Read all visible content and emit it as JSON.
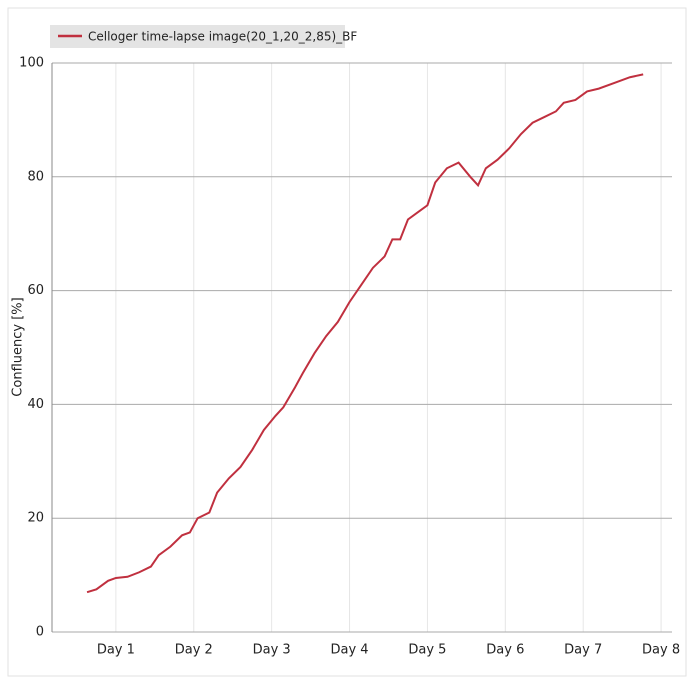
{
  "chart_data": {
    "type": "line",
    "ylabel": "Confluency [%]",
    "x": [
      0.63,
      0.75,
      0.9,
      1.0,
      1.15,
      1.3,
      1.45,
      1.55,
      1.7,
      1.85,
      1.95,
      2.05,
      2.2,
      2.3,
      2.45,
      2.6,
      2.75,
      2.9,
      3.05,
      3.15,
      3.3,
      3.4,
      3.55,
      3.7,
      3.85,
      4.0,
      4.15,
      4.3,
      4.45,
      4.55,
      4.65,
      4.75,
      4.9,
      5.0,
      5.1,
      5.25,
      5.4,
      5.55,
      5.65,
      5.75,
      5.9,
      6.05,
      6.2,
      6.35,
      6.5,
      6.65,
      6.75,
      6.9,
      7.05,
      7.2,
      7.4,
      7.6,
      7.77
    ],
    "series": [
      {
        "name": "Celloger time-lapse image(20_1,20_2,85)_BF",
        "color": "#c0303f",
        "values": [
          7,
          7.5,
          9,
          9.5,
          9.7,
          10.5,
          11.5,
          13.5,
          15,
          17,
          17.5,
          20,
          21,
          24.5,
          27,
          29,
          32,
          35.5,
          38,
          39.5,
          43,
          45.5,
          49,
          52,
          54.5,
          58,
          61,
          64,
          66,
          69,
          69,
          72.5,
          74,
          75,
          79,
          81.5,
          82.5,
          80,
          78.5,
          81.5,
          83,
          85,
          87.5,
          89.5,
          90.5,
          91.5,
          93,
          93.5,
          95,
          95.5,
          96.5,
          97.5,
          98
        ]
      }
    ],
    "xlim": [
      0.18,
      8.14
    ],
    "xticks": [
      {
        "value": 1,
        "label": "Day 1"
      },
      {
        "value": 2,
        "label": "Day 2"
      },
      {
        "value": 3,
        "label": "Day 3"
      },
      {
        "value": 4,
        "label": "Day 4"
      },
      {
        "value": 5,
        "label": "Day 5"
      },
      {
        "value": 6,
        "label": "Day 6"
      },
      {
        "value": 7,
        "label": "Day 7"
      },
      {
        "value": 8,
        "label": "Day 8"
      }
    ],
    "ylim": [
      0,
      100
    ],
    "yticks": [
      0,
      20,
      40,
      60,
      80,
      100
    ],
    "grid": true
  }
}
